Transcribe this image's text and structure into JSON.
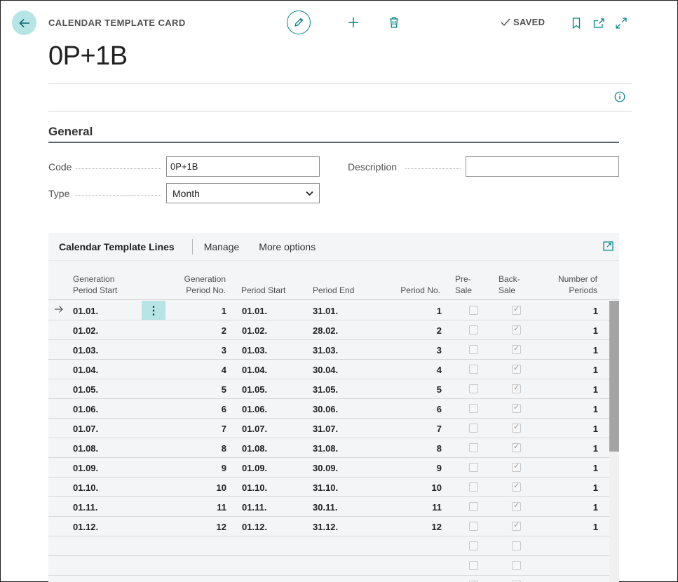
{
  "header": {
    "caption": "CALENDAR TEMPLATE CARD",
    "title": "0P+1B",
    "status": "SAVED"
  },
  "general": {
    "section_title": "General",
    "code_label": "Code",
    "code_value": "0P+1B",
    "type_label": "Type",
    "type_value": "Month",
    "description_label": "Description",
    "description_value": ""
  },
  "lines": {
    "title": "Calendar Template Lines",
    "menu_manage": "Manage",
    "menu_more": "More options",
    "columns": {
      "gen_start_1": "Generation",
      "gen_start_2": "Period Start",
      "gen_no_1": "Generation",
      "gen_no_2": "Period No.",
      "period_start": "Period Start",
      "period_end": "Period End",
      "period_no": "Period No.",
      "presale_1": "Pre-",
      "presale_2": "Sale",
      "backsale_1": "Back-",
      "backsale_2": "Sale",
      "num_1": "Number of",
      "num_2": "Periods"
    },
    "rows": [
      {
        "gen_start": "01.01.",
        "gen_no": "1",
        "start": "01.01.",
        "end": "31.01.",
        "no": "1",
        "periods": "1"
      },
      {
        "gen_start": "01.02.",
        "gen_no": "2",
        "start": "01.02.",
        "end": "28.02.",
        "no": "2",
        "periods": "1"
      },
      {
        "gen_start": "01.03.",
        "gen_no": "3",
        "start": "01.03.",
        "end": "31.03.",
        "no": "3",
        "periods": "1"
      },
      {
        "gen_start": "01.04.",
        "gen_no": "4",
        "start": "01.04.",
        "end": "30.04.",
        "no": "4",
        "periods": "1"
      },
      {
        "gen_start": "01.05.",
        "gen_no": "5",
        "start": "01.05.",
        "end": "31.05.",
        "no": "5",
        "periods": "1"
      },
      {
        "gen_start": "01.06.",
        "gen_no": "6",
        "start": "01.06.",
        "end": "30.06.",
        "no": "6",
        "periods": "1"
      },
      {
        "gen_start": "01.07.",
        "gen_no": "7",
        "start": "01.07.",
        "end": "31.07.",
        "no": "7",
        "periods": "1"
      },
      {
        "gen_start": "01.08.",
        "gen_no": "8",
        "start": "01.08.",
        "end": "31.08.",
        "no": "8",
        "periods": "1"
      },
      {
        "gen_start": "01.09.",
        "gen_no": "9",
        "start": "01.09.",
        "end": "30.09.",
        "no": "9",
        "periods": "1"
      },
      {
        "gen_start": "01.10.",
        "gen_no": "10",
        "start": "01.10.",
        "end": "31.10.",
        "no": "10",
        "periods": "1"
      },
      {
        "gen_start": "01.11.",
        "gen_no": "11",
        "start": "01.11.",
        "end": "30.11.",
        "no": "11",
        "periods": "1"
      },
      {
        "gen_start": "01.12.",
        "gen_no": "12",
        "start": "01.12.",
        "end": "31.12.",
        "no": "12",
        "periods": "1"
      }
    ]
  },
  "icons": {
    "back": "arrow-left-icon",
    "edit": "pencil-icon",
    "new": "plus-icon",
    "delete": "trash-icon",
    "saved": "checkmark-icon",
    "bookmark": "bookmark-icon",
    "open_new_window": "open-in-new-window-icon",
    "expand": "expand-icon",
    "info": "info-icon",
    "row_pointer": "arrow-right-icon",
    "row_actions": "vertical-ellipsis-icon"
  },
  "colors": {
    "accent": "#00858b",
    "accent_light": "#b7e4e4"
  }
}
